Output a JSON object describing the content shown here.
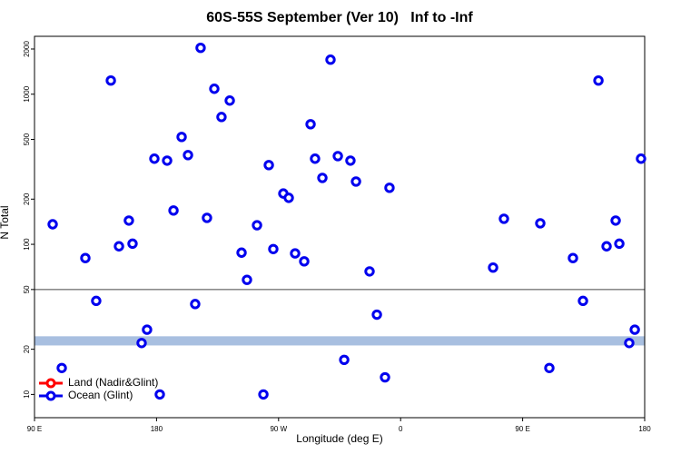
{
  "chart_data": {
    "type": "scatter",
    "title": "60S-55S September (Ver 10)   Inf to -Inf",
    "x_label": "Longitude (deg E)",
    "y_label": "N Total",
    "xlim": [
      90,
      540
    ],
    "xticks": [
      {
        "value": 90,
        "label": "90 E"
      },
      {
        "value": 180,
        "label": "180"
      },
      {
        "value": 270,
        "label": "90 W"
      },
      {
        "value": 360,
        "label": "0"
      },
      {
        "value": 450,
        "label": "90 E"
      },
      {
        "value": 540,
        "label": "180"
      }
    ],
    "ylim": [
      7,
      2430
    ],
    "yticks": [
      10,
      20,
      50,
      100,
      200,
      500,
      1000,
      2000
    ],
    "y_log": true,
    "hline": 50,
    "band": [
      21.2,
      24.4
    ],
    "band_color": "#a8bfe0",
    "legend": "bottom-left",
    "series": [
      {
        "name": "Land (Nadir&Glint)",
        "color": "#ff0000",
        "x": [],
        "values": []
      },
      {
        "name": "Ocean (Glint)",
        "color": "#0000ee",
        "x": [
          103.4,
          110.1,
          127.5,
          135.5,
          146.3,
          152.3,
          159.6,
          162.3,
          169.0,
          173.0,
          178.4,
          182.4,
          187.8,
          192.5,
          198.5,
          203.2,
          208.5,
          212.5,
          217.2,
          222.6,
          227.9,
          234.0,
          242.7,
          246.7,
          254.1,
          258.8,
          262.8,
          266.1,
          273.5,
          277.5,
          282.2,
          288.9,
          293.6,
          296.9,
          302.3,
          308.3,
          313.7,
          318.4,
          323.0,
          327.1,
          337.1,
          342.5,
          348.5,
          351.8,
          428.2,
          436.2,
          463.0,
          469.7,
          487.1,
          494.5,
          505.9,
          511.9,
          518.6,
          521.3,
          528.6,
          532.7,
          537.3
        ],
        "values": [
          136,
          15,
          81,
          42,
          1233,
          97,
          144,
          101,
          22,
          27,
          372,
          10,
          361,
          168,
          519,
          393,
          40,
          2036,
          150,
          1087,
          705,
          907,
          88,
          58,
          134,
          10,
          337,
          93,
          218,
          204,
          87,
          77,
          631,
          372,
          277,
          1698,
          387,
          17,
          361,
          262,
          66,
          34,
          13,
          238,
          70,
          148,
          138,
          15,
          81,
          42,
          1233,
          97,
          144,
          101,
          22,
          27,
          372
        ]
      }
    ]
  }
}
